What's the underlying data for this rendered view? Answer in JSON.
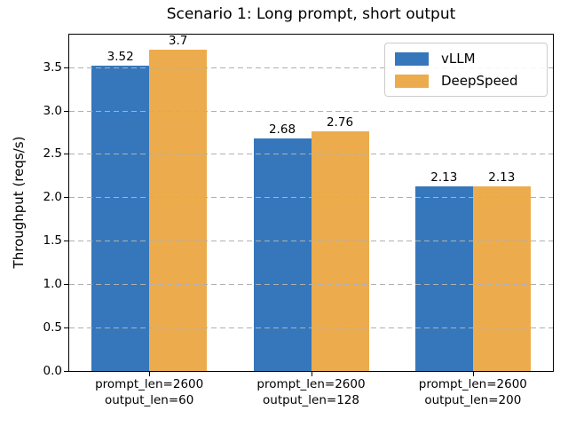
{
  "chart_data": {
    "type": "bar",
    "title": "Scenario 1: Long prompt, short output",
    "xlabel": "",
    "ylabel": "Throughput (reqs/s)",
    "categories": [
      {
        "line1": "prompt_len=2600",
        "line2": "output_len=60"
      },
      {
        "line1": "prompt_len=2600",
        "line2": "output_len=128"
      },
      {
        "line1": "prompt_len=2600",
        "line2": "output_len=200"
      }
    ],
    "series": [
      {
        "name": "vLLM",
        "color": "#3677BC",
        "values": [
          3.52,
          2.68,
          2.13
        ]
      },
      {
        "name": "DeepSpeed",
        "color": "#ECAC4D",
        "values": [
          3.7,
          2.76,
          2.13
        ]
      }
    ],
    "yticks": [
      "0.0",
      "0.5",
      "1.0",
      "1.5",
      "2.0",
      "2.5",
      "3.0",
      "3.5"
    ],
    "ylim": [
      0,
      3.885
    ],
    "grid": "horizontal-dashed",
    "grid_color": "#b0b0b0",
    "legend_position": "upper right",
    "background_color": "#ffffff",
    "text_color": "#000000"
  }
}
